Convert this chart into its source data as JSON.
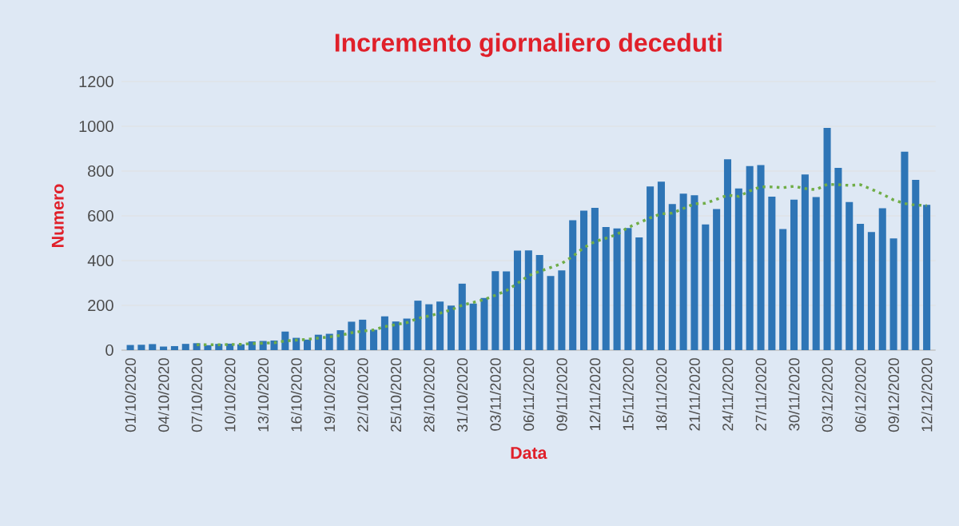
{
  "chart_data": {
    "type": "bar",
    "title": "Incremento giornaliero deceduti",
    "xlabel": "Data",
    "ylabel": "Numero",
    "categories": [
      "01/10/2020",
      null,
      null,
      "04/10/2020",
      null,
      null,
      "07/10/2020",
      null,
      null,
      "10/10/2020",
      null,
      null,
      "13/10/2020",
      null,
      null,
      "16/10/2020",
      null,
      null,
      "19/10/2020",
      null,
      null,
      "22/10/2020",
      null,
      null,
      "25/10/2020",
      null,
      null,
      "28/10/2020",
      null,
      null,
      "31/10/2020",
      null,
      null,
      "03/11/2020",
      null,
      null,
      "06/11/2020",
      null,
      null,
      "09/11/2020",
      null,
      null,
      "12/11/2020",
      null,
      null,
      "15/11/2020",
      null,
      null,
      "18/11/2020",
      null,
      null,
      "21/11/2020",
      null,
      null,
      "24/11/2020",
      null,
      null,
      "27/11/2020",
      null,
      null,
      "30/11/2020",
      null,
      null,
      "03/12/2020",
      null,
      null,
      "06/12/2020",
      null,
      null,
      "09/12/2020",
      null,
      null,
      "12/12/2020"
    ],
    "series": [
      {
        "color": "#2e75b6",
        "values": [
          23,
          24,
          27,
          16,
          18,
          28,
          31,
          22,
          28,
          29,
          26,
          39,
          41,
          43,
          83,
          55,
          47,
          69,
          73,
          89,
          127,
          136,
          91,
          151,
          128,
          141,
          221,
          205,
          217,
          199,
          297,
          208,
          233,
          353,
          352,
          445,
          446,
          425,
          331,
          356,
          580,
          623,
          636,
          550,
          544,
          546,
          504,
          731,
          753,
          653,
          699,
          692,
          562,
          630,
          853,
          722,
          822,
          827,
          686,
          541,
          672,
          785,
          684,
          993,
          814,
          662,
          564,
          528,
          634,
          499,
          887,
          761,
          649
        ]
      },
      {
        "type": "line",
        "color": "#70ad47",
        "line_style": "dotted",
        "values": [
          null,
          null,
          null,
          null,
          null,
          null,
          24,
          24,
          24,
          25,
          26,
          29,
          31,
          33,
          41,
          45,
          48,
          54,
          59,
          66,
          78,
          85,
          90,
          105,
          114,
          123,
          142,
          153,
          165,
          180,
          201,
          213,
          226,
          245,
          266,
          298,
          333,
          352,
          369,
          387,
          419,
          458,
          485,
          500,
          517,
          548,
          569,
          591,
          609,
          612,
          633,
          654,
          656,
          674,
          692,
          687,
          711,
          730,
          729,
          726,
          732,
          722,
          717,
          741,
          739,
          736,
          739,
          719,
          697,
          671,
          655,
          648,
          646
        ]
      }
    ],
    "ylim": [
      0,
      1200
    ],
    "yticks": [
      0,
      200,
      400,
      600,
      800,
      1000,
      1200
    ],
    "grid": "y"
  }
}
